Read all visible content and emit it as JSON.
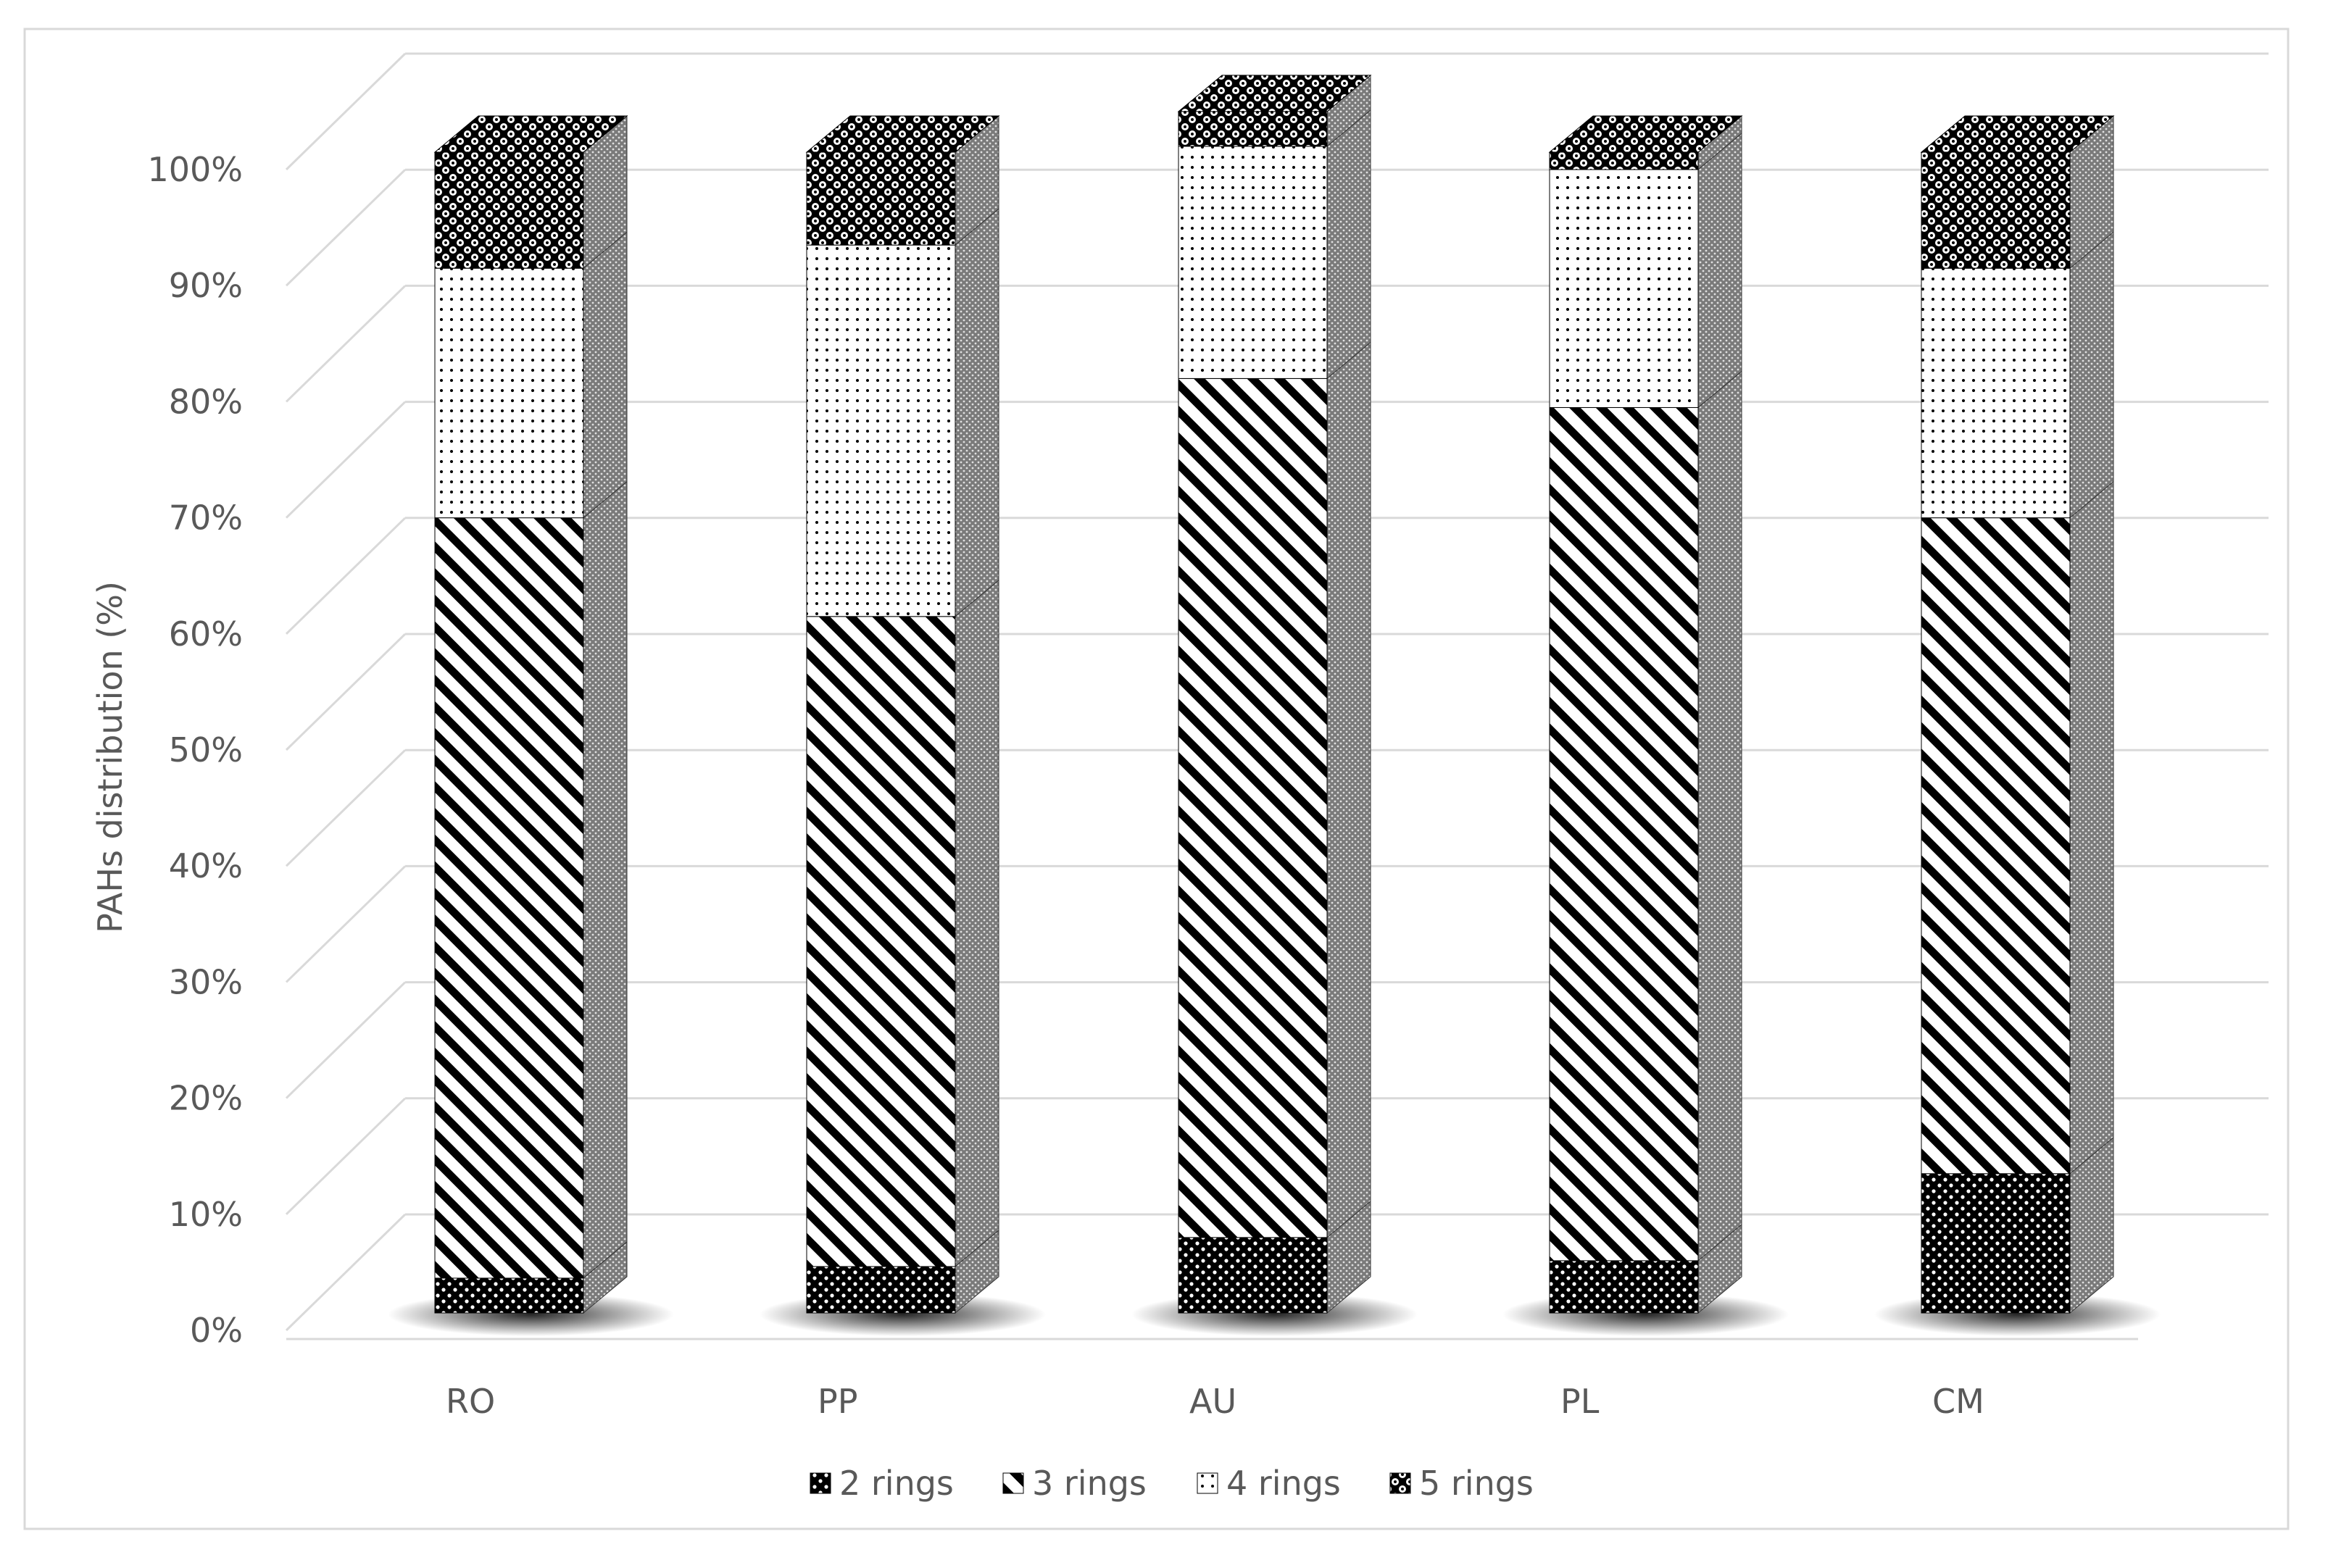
{
  "chart_data": {
    "type": "bar",
    "stacked": true,
    "style": "3d-column",
    "title": "",
    "xlabel": "",
    "ylabel": "PAHs distribution (%)",
    "ylim": [
      0,
      100
    ],
    "y_ticks": [
      "0%",
      "10%",
      "20%",
      "30%",
      "40%",
      "50%",
      "60%",
      "70%",
      "80%",
      "90%",
      "100%"
    ],
    "categories": [
      "RO",
      "PP",
      "AU",
      "PL",
      "CM"
    ],
    "series": [
      {
        "name": "2 rings",
        "values": [
          3,
          4,
          6.5,
          4.5,
          12
        ]
      },
      {
        "name": "3 rings",
        "values": [
          65.5,
          56,
          74,
          73.5,
          56.5
        ]
      },
      {
        "name": "4 rings",
        "values": [
          21.5,
          32,
          20,
          20.5,
          21.5
        ]
      },
      {
        "name": "5 rings",
        "values": [
          10,
          8,
          3,
          1.5,
          10
        ]
      }
    ],
    "grid": true,
    "legend_position": "bottom",
    "colors": {
      "axis_text": "#595959",
      "grid": "#d9d9d9",
      "bar_ink": "#000000",
      "border": "#d9d9d9"
    }
  }
}
